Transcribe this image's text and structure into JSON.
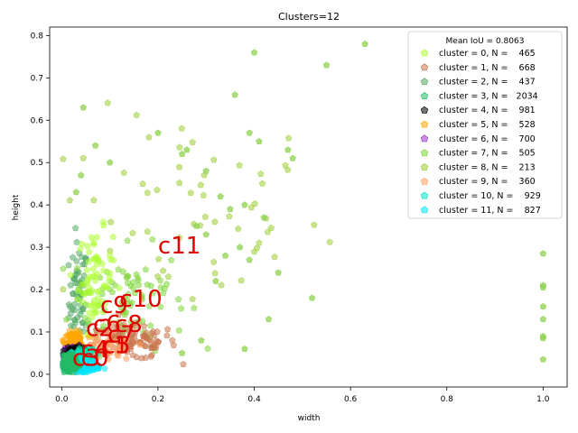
{
  "chart_data": {
    "type": "scatter",
    "title": "Clusters=12",
    "xlabel": "width",
    "ylabel": "height",
    "xlim": [
      -0.025,
      1.05
    ],
    "ylim": [
      -0.03,
      0.82
    ],
    "x_ticks": [
      0.0,
      0.2,
      0.4,
      0.6,
      0.8,
      1.0
    ],
    "x_tick_labels": [
      "0.0",
      "0.2",
      "0.4",
      "0.6",
      "0.8",
      "1.0"
    ],
    "y_ticks": [
      0.0,
      0.1,
      0.2,
      0.3,
      0.4,
      0.5,
      0.6,
      0.7,
      0.8
    ],
    "y_tick_labels": [
      "0.0",
      "0.1",
      "0.2",
      "0.3",
      "0.4",
      "0.5",
      "0.6",
      "0.7",
      "0.8"
    ],
    "grid": false,
    "legend_position": "upper right",
    "legend_title": "Mean IoU = 0.8063",
    "series": [
      {
        "name": "cluster = 0, N =    465",
        "color": "#adff2f",
        "centroid": [
          0.07,
          0.22
        ],
        "spread": [
          0.018,
          0.06
        ],
        "n": 465
      },
      {
        "name": "cluster = 1, N =    668",
        "color": "#c8744c",
        "centroid": [
          0.14,
          0.075
        ],
        "spread": [
          0.05,
          0.02
        ],
        "n": 668
      },
      {
        "name": "cluster = 2, N =    437",
        "color": "#55aa66",
        "centroid": [
          0.035,
          0.17
        ],
        "spread": [
          0.01,
          0.07
        ],
        "n": 437
      },
      {
        "name": "cluster = 3, N =   2034",
        "color": "#22bb66",
        "centroid": [
          0.015,
          0.025
        ],
        "spread": [
          0.008,
          0.008
        ],
        "n": 2034
      },
      {
        "name": "cluster = 4, N =    981",
        "color": "#000000",
        "centroid": [
          0.03,
          0.045
        ],
        "spread": [
          0.01,
          0.01
        ],
        "n": 981
      },
      {
        "name": "cluster = 5, N =    528",
        "color": "#ffa500",
        "centroid": [
          0.025,
          0.08
        ],
        "spread": [
          0.01,
          0.01
        ],
        "n": 528
      },
      {
        "name": "cluster = 6, N =    700",
        "color": "#9932cc",
        "centroid": [
          0.02,
          0.045
        ],
        "spread": [
          0.008,
          0.012
        ],
        "n": 700
      },
      {
        "name": "cluster = 7, N =    505",
        "color": "#7fd63a",
        "centroid": [
          0.14,
          0.18
        ],
        "spread": [
          0.06,
          0.06
        ],
        "n": 505
      },
      {
        "name": "cluster = 8, N =    213",
        "color": "#9acd32",
        "centroid": [
          0.26,
          0.38
        ],
        "spread": [
          0.14,
          0.12
        ],
        "n": 213
      },
      {
        "name": "cluster = 9, N =    360",
        "color": "#ffa060",
        "centroid": [
          0.09,
          0.06
        ],
        "spread": [
          0.03,
          0.015
        ],
        "n": 360
      },
      {
        "name": "cluster = 10, N =    929",
        "color": "#00e5c0",
        "centroid": [
          0.045,
          0.035
        ],
        "spread": [
          0.012,
          0.012
        ],
        "n": 929
      },
      {
        "name": "cluster = 11, N =    827",
        "color": "#00e5ff",
        "centroid": [
          0.05,
          0.02
        ],
        "spread": [
          0.015,
          0.006
        ],
        "n": 827
      }
    ],
    "outliers": [
      [
        0.045,
        0.63
      ],
      [
        0.07,
        0.54
      ],
      [
        0.04,
        0.47
      ],
      [
        0.03,
        0.43
      ],
      [
        0.1,
        0.5
      ],
      [
        0.2,
        0.57
      ],
      [
        0.25,
        0.52
      ],
      [
        0.26,
        0.53
      ],
      [
        0.3,
        0.48
      ],
      [
        0.33,
        0.42
      ],
      [
        0.36,
        0.66
      ],
      [
        0.4,
        0.76
      ],
      [
        0.55,
        0.73
      ],
      [
        0.63,
        0.78
      ],
      [
        0.39,
        0.57
      ],
      [
        0.41,
        0.55
      ],
      [
        0.47,
        0.53
      ],
      [
        0.48,
        0.51
      ],
      [
        0.35,
        0.39
      ],
      [
        0.38,
        0.4
      ],
      [
        0.42,
        0.37
      ],
      [
        0.37,
        0.3
      ],
      [
        0.39,
        0.27
      ],
      [
        0.45,
        0.24
      ],
      [
        0.52,
        0.18
      ],
      [
        0.43,
        0.13
      ],
      [
        0.34,
        0.28
      ],
      [
        0.3,
        0.33
      ],
      [
        0.28,
        0.35
      ],
      [
        0.32,
        0.22
      ],
      [
        1.0,
        0.285
      ],
      [
        1.0,
        0.21
      ],
      [
        1.0,
        0.205
      ],
      [
        1.0,
        0.16
      ],
      [
        1.0,
        0.13
      ],
      [
        1.0,
        0.09
      ],
      [
        1.0,
        0.085
      ],
      [
        1.0,
        0.035
      ],
      [
        0.29,
        0.08
      ],
      [
        0.38,
        0.06
      ],
      [
        0.25,
        0.05
      ]
    ],
    "outlier_color": "#8fd14f",
    "cluster_labels": [
      {
        "text": "c0",
        "x": 0.04,
        "y": 0.02
      },
      {
        "text": "c1",
        "x": 0.082,
        "y": 0.05
      },
      {
        "text": "c2",
        "x": 0.05,
        "y": 0.09
      },
      {
        "text": "c3",
        "x": 0.022,
        "y": 0.02
      },
      {
        "text": "c4",
        "x": 0.04,
        "y": 0.04
      },
      {
        "text": "c5",
        "x": 0.085,
        "y": 0.05
      },
      {
        "text": "c6",
        "x": 0.065,
        "y": 0.1
      },
      {
        "text": "c7",
        "x": 0.095,
        "y": 0.075
      },
      {
        "text": "c8",
        "x": 0.11,
        "y": 0.1
      },
      {
        "text": "c9",
        "x": 0.08,
        "y": 0.145
      },
      {
        "text": "c10",
        "x": 0.12,
        "y": 0.16
      },
      {
        "text": "c11",
        "x": 0.2,
        "y": 0.285
      }
    ]
  }
}
